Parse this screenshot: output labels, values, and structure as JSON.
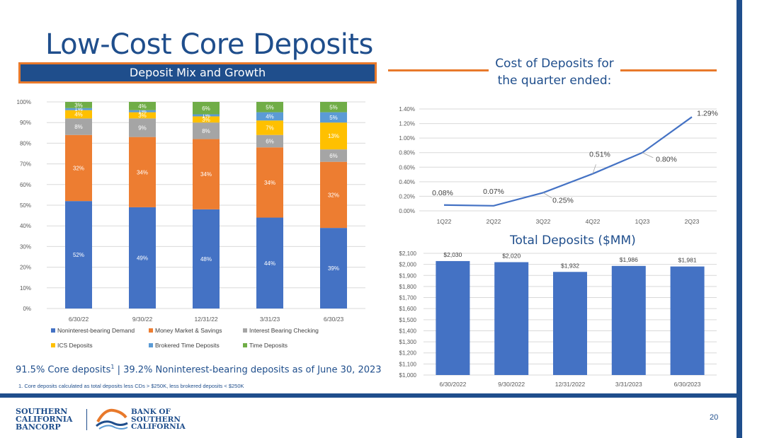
{
  "slide": {
    "title": "Low-Cost Core Deposits",
    "mix_banner": "Deposit Mix and Growth",
    "cost_title_line1": "Cost of Deposits for",
    "cost_title_line2": "the quarter ended:",
    "total_title": "Total Deposits ($MM)",
    "footnote_main_pre": "91.5% Core deposits",
    "footnote_main_sup": "1",
    "footnote_main_post": " | 39.2% Noninterest-bearing deposits as of June 30, 2023",
    "footnote_small": "1.    Core deposits calculated as total deposits less CDs > $250K, less brokered deposits < $250K",
    "page_number": "20",
    "logo_left": [
      "SOUTHERN",
      "CALIFORNIA",
      "BANCORP"
    ],
    "logo_right": [
      "BANK OF",
      "SOUTHERN",
      "CALIFORNIA"
    ]
  },
  "colors": {
    "navy": "#1f4e8c",
    "orange": "#e8792b",
    "bar_blue": "#4472c4",
    "mm_orange": "#ed7d31",
    "gray": "#a5a5a5",
    "gold": "#ffc000",
    "light_blue": "#5b9bd5",
    "green": "#70ad47"
  },
  "chart_data": [
    {
      "type": "bar",
      "stacked": true,
      "title": "Deposit Mix and Growth",
      "categories": [
        "6/30/22",
        "9/30/22",
        "12/31/22",
        "3/31/23",
        "6/30/23"
      ],
      "series": [
        {
          "name": "Noninterest-bearing Demand",
          "color": "#4472c4",
          "values": [
            52,
            49,
            48,
            44,
            39
          ],
          "labels": [
            "52%",
            "49%",
            "48%",
            "44%",
            "39%"
          ]
        },
        {
          "name": "Money Market & Savings",
          "color": "#ed7d31",
          "values": [
            32,
            34,
            34,
            34,
            32
          ],
          "labels": [
            "32%",
            "34%",
            "34%",
            "34%",
            "32%"
          ]
        },
        {
          "name": "Interest Bearing Checking",
          "color": "#a5a5a5",
          "values": [
            8,
            9,
            8,
            6,
            6
          ],
          "labels": [
            "8%",
            "9%",
            "8%",
            "6%",
            "6%"
          ]
        },
        {
          "name": "ICS Deposits",
          "color": "#ffc000",
          "values": [
            4,
            3,
            3,
            7,
            13
          ],
          "labels": [
            "4%",
            "3%",
            "3%",
            "7%",
            "13%"
          ]
        },
        {
          "name": "Brokered Time Deposits",
          "color": "#5b9bd5",
          "values": [
            1,
            1,
            1,
            4,
            5
          ],
          "labels": [
            "1%",
            "1%",
            "1%",
            "4%",
            "5%"
          ]
        },
        {
          "name": "Time Deposits",
          "color": "#70ad47",
          "values": [
            3,
            4,
            6,
            5,
            5
          ],
          "labels": [
            "3%",
            "4%",
            "6%",
            "5%",
            "5%"
          ]
        }
      ],
      "ylim": [
        0,
        100
      ],
      "yticks": [
        "0%",
        "10%",
        "20%",
        "30%",
        "40%",
        "50%",
        "60%",
        "70%",
        "80%",
        "90%",
        "100%"
      ],
      "legend_position": "bottom",
      "grid": true
    },
    {
      "type": "line",
      "title": "Cost of Deposits for the quarter ended:",
      "categories": [
        "1Q22",
        "2Q22",
        "3Q22",
        "4Q22",
        "1Q23",
        "2Q23"
      ],
      "values": [
        0.08,
        0.07,
        0.25,
        0.51,
        0.8,
        1.29
      ],
      "labels": [
        "0.08%",
        "0.07%",
        "0.25%",
        "0.51%",
        "0.80%",
        "1.29%"
      ],
      "ylim": [
        0,
        1.4
      ],
      "yticks": [
        "0.00%",
        "0.20%",
        "0.40%",
        "0.60%",
        "0.80%",
        "1.00%",
        "1.20%",
        "1.40%"
      ],
      "grid": true
    },
    {
      "type": "bar",
      "title": "Total Deposits ($MM)",
      "categories": [
        "6/30/2022",
        "9/30/2022",
        "12/31/2022",
        "3/31/2023",
        "6/30/2023"
      ],
      "values": [
        2030,
        2020,
        1932,
        1986,
        1981
      ],
      "labels": [
        "$2,030",
        "$2,020",
        "$1,932",
        "$1,986",
        "$1,981"
      ],
      "ylim": [
        1000,
        2100
      ],
      "yticks": [
        "$1,000",
        "$1,100",
        "$1,200",
        "$1,300",
        "$1,400",
        "$1,500",
        "$1,600",
        "$1,700",
        "$1,800",
        "$1,900",
        "$2,000",
        "$2,100"
      ],
      "grid": true
    }
  ]
}
